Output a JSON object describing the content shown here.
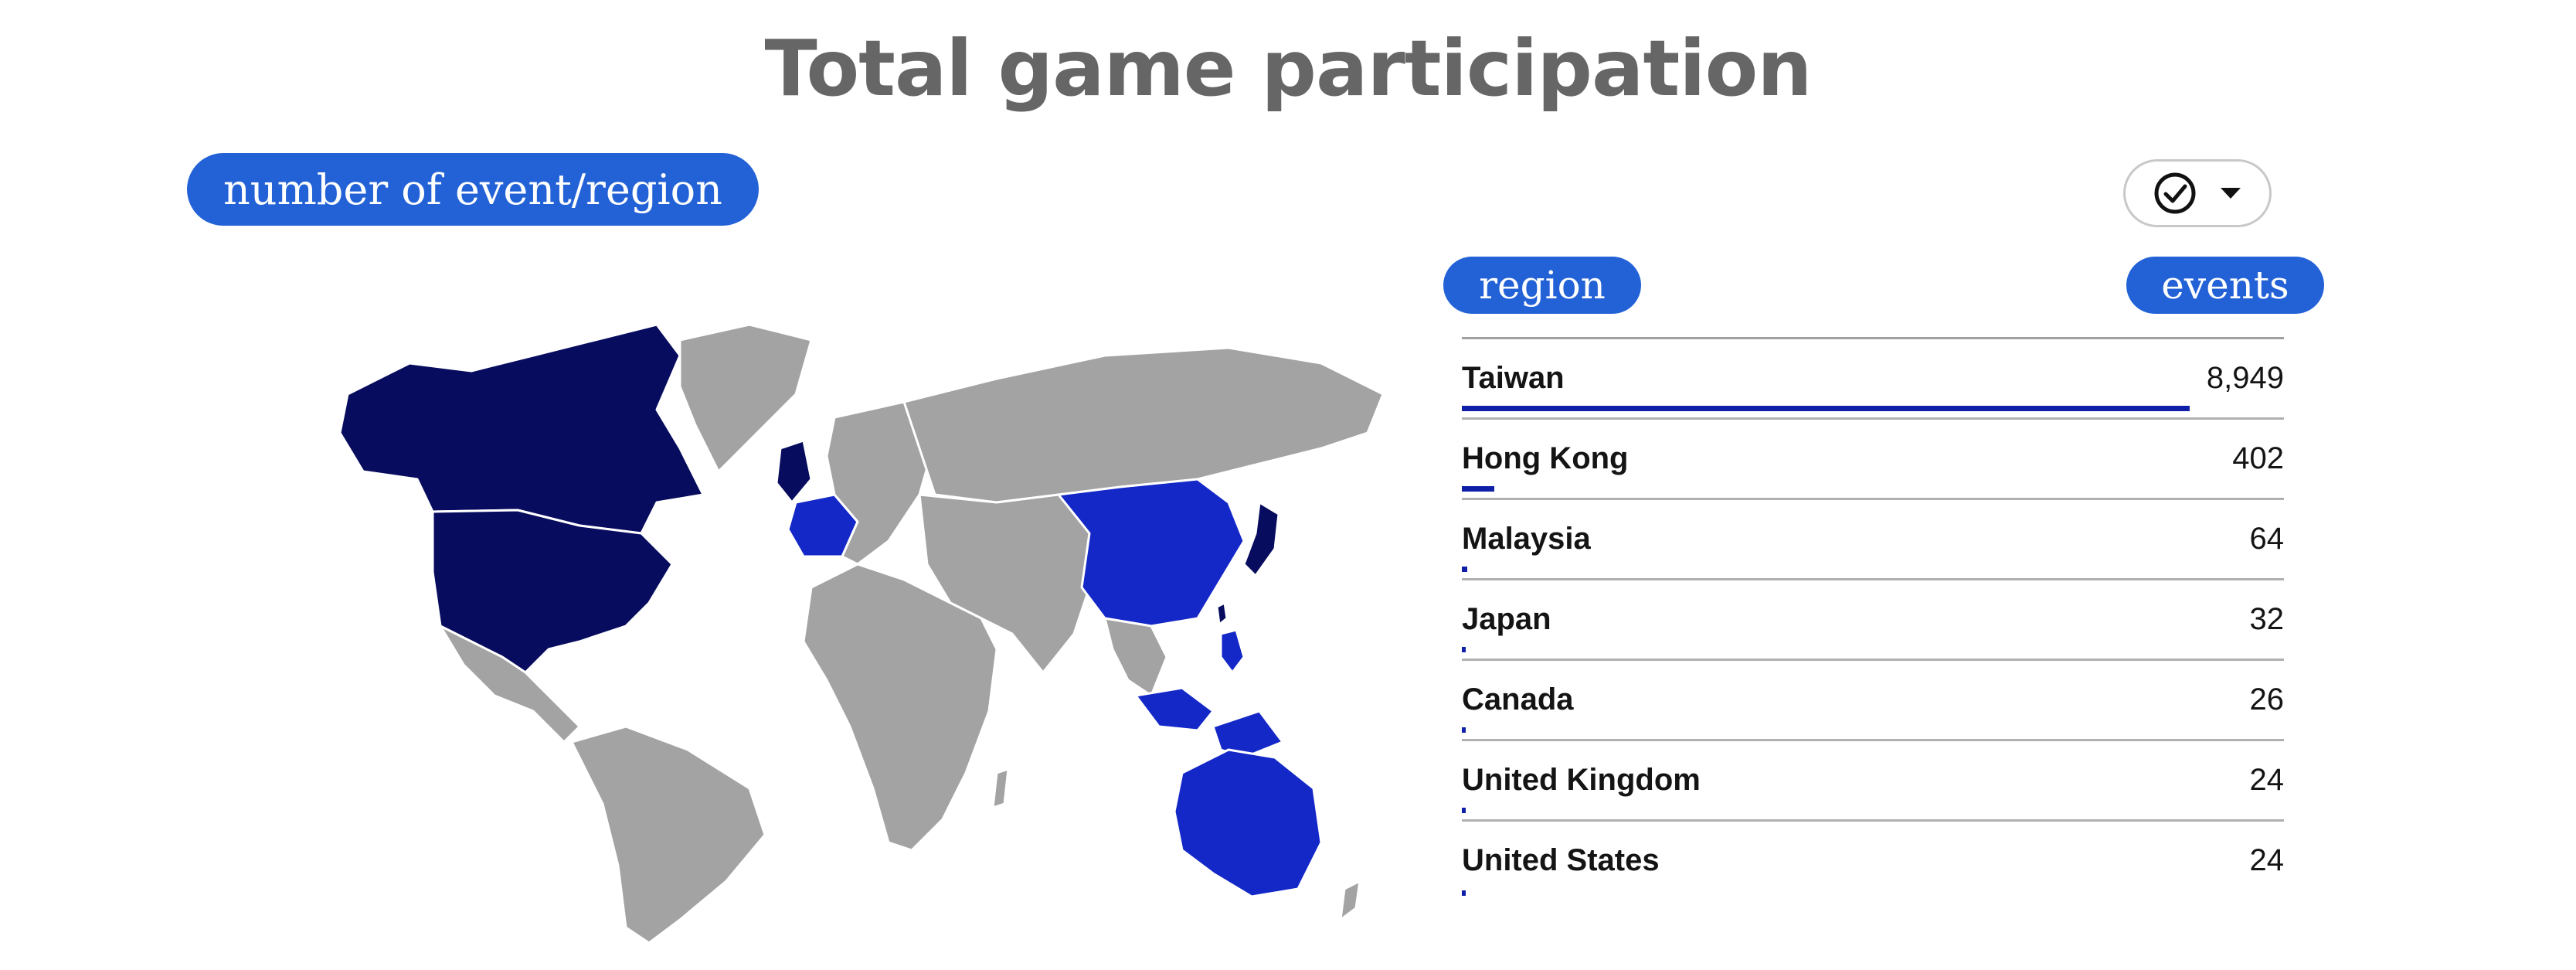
{
  "title": "Total game participation",
  "section_label": "number of event/region",
  "filter": {
    "icon": "check-circle-icon",
    "dropdown_icon": "caret-down-icon"
  },
  "table": {
    "headers": {
      "region": "region",
      "events": "events"
    },
    "rows": [
      {
        "region": "Taiwan",
        "events": "8,949",
        "value": 8949
      },
      {
        "region": "Hong Kong",
        "events": "402",
        "value": 402
      },
      {
        "region": "Malaysia",
        "events": "64",
        "value": 64
      },
      {
        "region": "Japan",
        "events": "32",
        "value": 32
      },
      {
        "region": "Canada",
        "events": "26",
        "value": 26
      },
      {
        "region": "United Kingdom",
        "events": "24",
        "value": 24
      },
      {
        "region": "United States",
        "events": "24",
        "value": 24
      }
    ],
    "max_value": 9500
  },
  "map": {
    "highlighted_regions": {
      "high": [
        "Canada",
        "United States",
        "Japan",
        "Taiwan",
        "United Kingdom"
      ],
      "medium": [
        "China",
        "France",
        "Australia",
        "Malaysia",
        "Indonesia",
        "Philippines"
      ]
    },
    "colors": {
      "high": "#070c5e",
      "medium": "#1428c8",
      "none": "#a3a3a3",
      "border": "#ffffff"
    }
  },
  "colors": {
    "accent": "#2362d6",
    "bar": "#0f1fa8",
    "title": "#666666"
  }
}
